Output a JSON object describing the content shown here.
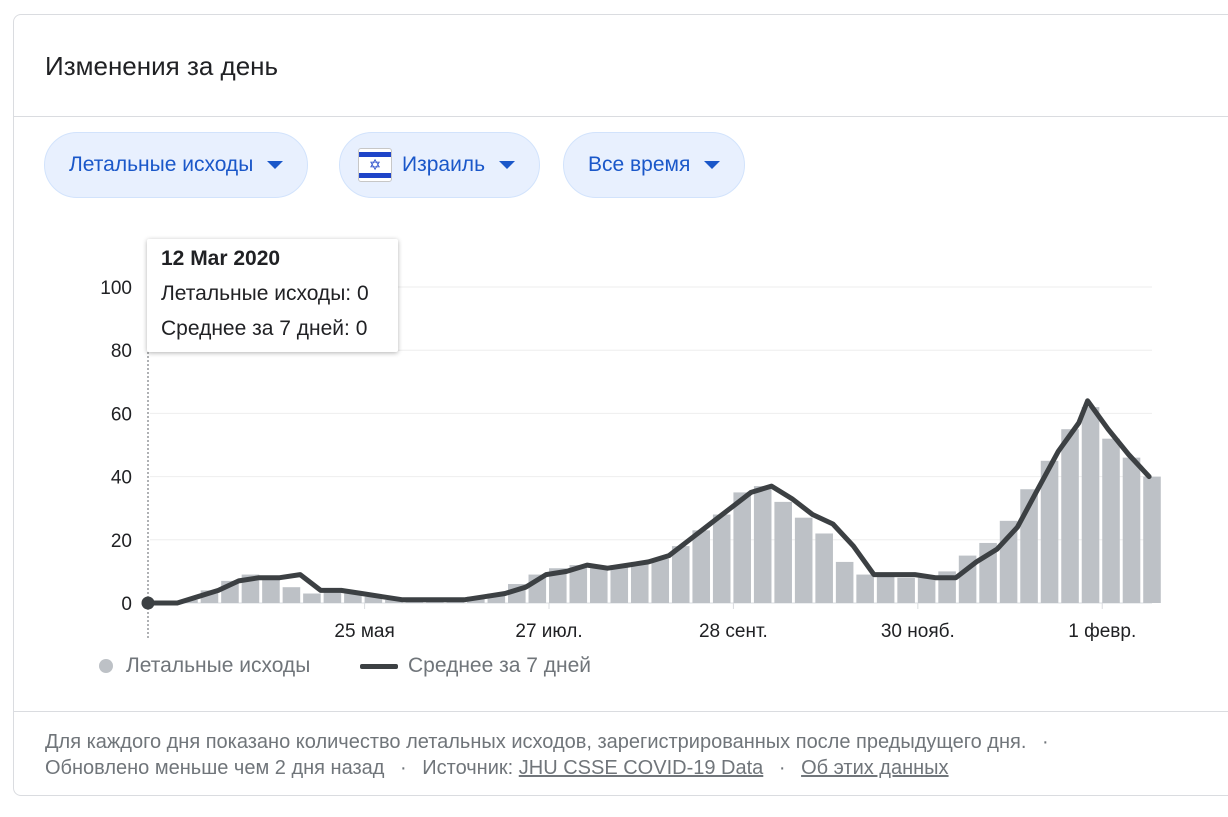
{
  "card": {
    "title": "Изменения за день"
  },
  "filters": {
    "metric_label": "Летальные исходы",
    "country_label": "Израиль",
    "period_label": "Все время"
  },
  "tooltip": {
    "date": "12 Mar 2020",
    "deaths_line": "Летальные исходы: 0",
    "avg_line": "Среднее за 7 дней: 0"
  },
  "legend": {
    "deaths": "Летальные исходы",
    "average": "Среднее за 7 дней"
  },
  "footer": {
    "description": "Для каждого дня показано количество летальных исходов, зарегистрированных после предыдущего дня.",
    "updated": "Обновлено меньше чем 2 дня назад",
    "source_prefix": "Источник:",
    "source_link": "JHU CSSE COVID-19 Data",
    "about_link": "Об этих данных",
    "separator": "·"
  },
  "colors": {
    "accent": "#1a57c9",
    "bar": "#bdc1c6",
    "line": "#3c4043",
    "chip_bg": "#e8f0fe"
  },
  "chart_data": {
    "type": "bar",
    "x_range": [
      "2020-03-12",
      "2021-02-18"
    ],
    "ylim": [
      0,
      100
    ],
    "yticks": [
      0,
      20,
      40,
      60,
      80,
      100
    ],
    "xtick_labels": [
      "25 мая",
      "27 июл.",
      "28 сент.",
      "30 нояб.",
      "1 февр."
    ],
    "xtick_dates": [
      "2020-05-25",
      "2020-07-27",
      "2020-09-28",
      "2020-11-30",
      "2021-02-01"
    ],
    "series": [
      {
        "name": "Летальные исходы",
        "type": "bar",
        "points": [
          [
            "2020-03-12",
            0
          ],
          [
            "2020-03-26",
            1
          ],
          [
            "2020-04-02",
            4
          ],
          [
            "2020-04-09",
            7
          ],
          [
            "2020-04-16",
            9
          ],
          [
            "2020-04-23",
            8
          ],
          [
            "2020-04-30",
            5
          ],
          [
            "2020-05-07",
            3
          ],
          [
            "2020-05-14",
            4
          ],
          [
            "2020-05-21",
            3
          ],
          [
            "2020-05-28",
            2
          ],
          [
            "2020-06-04",
            1
          ],
          [
            "2020-06-11",
            1
          ],
          [
            "2020-06-18",
            1
          ],
          [
            "2020-06-25",
            1
          ],
          [
            "2020-07-02",
            2
          ],
          [
            "2020-07-09",
            3
          ],
          [
            "2020-07-16",
            6
          ],
          [
            "2020-07-23",
            9
          ],
          [
            "2020-07-30",
            11
          ],
          [
            "2020-08-06",
            12
          ],
          [
            "2020-08-13",
            11
          ],
          [
            "2020-08-20",
            12
          ],
          [
            "2020-08-27",
            13
          ],
          [
            "2020-09-03",
            14
          ],
          [
            "2020-09-10",
            18
          ],
          [
            "2020-09-17",
            23
          ],
          [
            "2020-09-24",
            28
          ],
          [
            "2020-10-01",
            35
          ],
          [
            "2020-10-08",
            37
          ],
          [
            "2020-10-15",
            32
          ],
          [
            "2020-10-22",
            27
          ],
          [
            "2020-10-29",
            22
          ],
          [
            "2020-11-05",
            13
          ],
          [
            "2020-11-12",
            9
          ],
          [
            "2020-11-19",
            9
          ],
          [
            "2020-11-26",
            8
          ],
          [
            "2020-12-03",
            8
          ],
          [
            "2020-12-10",
            10
          ],
          [
            "2020-12-17",
            15
          ],
          [
            "2020-12-24",
            19
          ],
          [
            "2020-12-31",
            26
          ],
          [
            "2021-01-07",
            36
          ],
          [
            "2021-01-14",
            45
          ],
          [
            "2021-01-21",
            55
          ],
          [
            "2021-01-28",
            62
          ],
          [
            "2021-02-04",
            52
          ],
          [
            "2021-02-11",
            46
          ],
          [
            "2021-02-18",
            40
          ]
        ]
      },
      {
        "name": "Среднее за 7 дней",
        "type": "line",
        "points": [
          [
            "2020-03-12",
            0
          ],
          [
            "2020-03-22",
            0
          ],
          [
            "2020-03-29",
            2
          ],
          [
            "2020-04-05",
            4
          ],
          [
            "2020-04-12",
            7
          ],
          [
            "2020-04-19",
            8
          ],
          [
            "2020-04-26",
            8
          ],
          [
            "2020-05-03",
            9
          ],
          [
            "2020-05-10",
            4
          ],
          [
            "2020-05-17",
            4
          ],
          [
            "2020-05-24",
            3
          ],
          [
            "2020-05-31",
            2
          ],
          [
            "2020-06-07",
            1
          ],
          [
            "2020-06-14",
            1
          ],
          [
            "2020-06-21",
            1
          ],
          [
            "2020-06-28",
            1
          ],
          [
            "2020-07-05",
            2
          ],
          [
            "2020-07-12",
            3
          ],
          [
            "2020-07-19",
            5
          ],
          [
            "2020-07-26",
            9
          ],
          [
            "2020-08-02",
            10
          ],
          [
            "2020-08-09",
            12
          ],
          [
            "2020-08-16",
            11
          ],
          [
            "2020-08-23",
            12
          ],
          [
            "2020-08-30",
            13
          ],
          [
            "2020-09-06",
            15
          ],
          [
            "2020-09-13",
            20
          ],
          [
            "2020-09-20",
            25
          ],
          [
            "2020-09-27",
            30
          ],
          [
            "2020-10-04",
            35
          ],
          [
            "2020-10-11",
            37
          ],
          [
            "2020-10-18",
            33
          ],
          [
            "2020-10-25",
            28
          ],
          [
            "2020-11-01",
            25
          ],
          [
            "2020-11-08",
            18
          ],
          [
            "2020-11-15",
            9
          ],
          [
            "2020-11-22",
            9
          ],
          [
            "2020-11-29",
            9
          ],
          [
            "2020-12-06",
            8
          ],
          [
            "2020-12-13",
            8
          ],
          [
            "2020-12-20",
            13
          ],
          [
            "2020-12-27",
            17
          ],
          [
            "2021-01-03",
            24
          ],
          [
            "2021-01-10",
            36
          ],
          [
            "2021-01-17",
            48
          ],
          [
            "2021-01-24",
            57
          ],
          [
            "2021-01-27",
            64
          ],
          [
            "2021-02-03",
            55
          ],
          [
            "2021-02-10",
            47
          ],
          [
            "2021-02-17",
            40
          ]
        ]
      }
    ]
  }
}
